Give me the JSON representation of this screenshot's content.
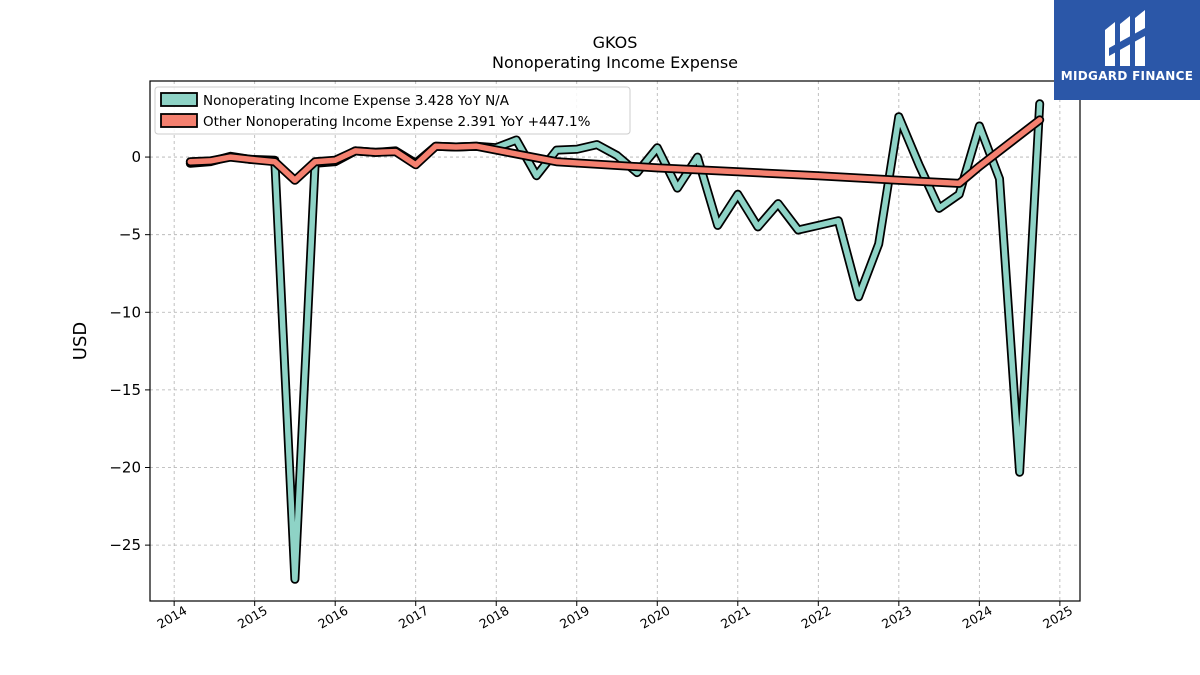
{
  "brand": {
    "name": "MIDGARD FINANCE",
    "accent": "#2b57a8"
  },
  "chart_data": {
    "type": "line",
    "title": "GKOS",
    "subtitle": "Nonoperating Income Expense",
    "ylabel": "USD",
    "xlabel": "",
    "xlim": [
      2013.7,
      2025.25
    ],
    "ylim": [
      -28.6,
      4.9
    ],
    "yticks": [
      0,
      -5,
      -10,
      -15,
      -20,
      -25
    ],
    "ytick_labels": [
      "0",
      "−5",
      "−10",
      "−15",
      "−20",
      "−25"
    ],
    "xticks": [
      2014,
      2015,
      2016,
      2017,
      2018,
      2019,
      2020,
      2021,
      2022,
      2023,
      2024,
      2025
    ],
    "grid": true,
    "legend_position": "top-left",
    "series": [
      {
        "name": "Nonoperating Income Expense  3.428 YoY N/A",
        "color": "#8ed3c6",
        "points": [
          [
            2014.2,
            -0.4
          ],
          [
            2014.45,
            -0.3
          ],
          [
            2014.7,
            0.05
          ],
          [
            2014.95,
            -0.15
          ],
          [
            2015.25,
            -0.2
          ],
          [
            2015.5,
            -27.2
          ],
          [
            2015.75,
            -0.4
          ],
          [
            2016.0,
            -0.3
          ],
          [
            2016.25,
            0.4
          ],
          [
            2016.5,
            0.3
          ],
          [
            2016.75,
            0.4
          ],
          [
            2017.0,
            -0.4
          ],
          [
            2017.25,
            0.7
          ],
          [
            2017.5,
            0.65
          ],
          [
            2017.75,
            0.7
          ],
          [
            2018.0,
            0.6
          ],
          [
            2018.25,
            1.1
          ],
          [
            2018.5,
            -1.2
          ],
          [
            2018.75,
            0.45
          ],
          [
            2019.0,
            0.5
          ],
          [
            2019.25,
            0.8
          ],
          [
            2019.5,
            0.1
          ],
          [
            2019.75,
            -1.0
          ],
          [
            2020.0,
            0.6
          ],
          [
            2020.25,
            -2.0
          ],
          [
            2020.5,
            0.0
          ],
          [
            2020.75,
            -4.4
          ],
          [
            2021.0,
            -2.4
          ],
          [
            2021.25,
            -4.5
          ],
          [
            2021.5,
            -3.0
          ],
          [
            2021.75,
            -4.7
          ],
          [
            2022.0,
            -4.4
          ],
          [
            2022.25,
            -4.1
          ],
          [
            2022.5,
            -9.0
          ],
          [
            2022.75,
            -5.6
          ],
          [
            2023.0,
            2.6
          ],
          [
            2023.25,
            -0.5
          ],
          [
            2023.5,
            -3.3
          ],
          [
            2023.75,
            -2.4
          ],
          [
            2024.0,
            2.0
          ],
          [
            2024.25,
            -1.4
          ],
          [
            2024.5,
            -20.3
          ],
          [
            2024.75,
            3.428
          ]
        ]
      },
      {
        "name": "Other Nonoperating Income Expense  2.391 YoY +447.1%",
        "color": "#f4806f",
        "points": [
          [
            2014.2,
            -0.3
          ],
          [
            2014.45,
            -0.25
          ],
          [
            2014.7,
            0.0
          ],
          [
            2014.95,
            -0.15
          ],
          [
            2015.25,
            -0.3
          ],
          [
            2015.5,
            -1.5
          ],
          [
            2015.75,
            -0.3
          ],
          [
            2016.0,
            -0.2
          ],
          [
            2016.25,
            0.4
          ],
          [
            2016.5,
            0.3
          ],
          [
            2016.75,
            0.35
          ],
          [
            2017.0,
            -0.5
          ],
          [
            2017.25,
            0.7
          ],
          [
            2017.5,
            0.65
          ],
          [
            2017.75,
            0.7
          ],
          [
            2018.0,
            0.45
          ],
          [
            2018.75,
            -0.3
          ],
          [
            2020.0,
            -0.7
          ],
          [
            2021.0,
            -0.95
          ],
          [
            2022.0,
            -1.2
          ],
          [
            2023.0,
            -1.5
          ],
          [
            2023.75,
            -1.7
          ],
          [
            2024.0,
            -0.6
          ],
          [
            2024.75,
            2.391
          ]
        ]
      }
    ]
  }
}
